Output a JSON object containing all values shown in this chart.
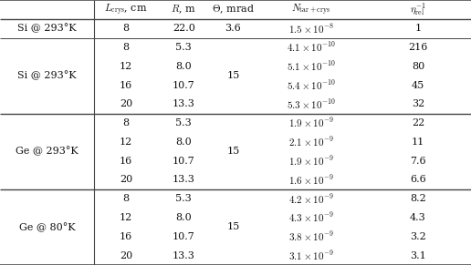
{
  "bg_color": "#ffffff",
  "text_color": "#111111",
  "line_color": "#444444",
  "font_size": 8.0,
  "col_boundaries": [
    0.0,
    0.2,
    0.335,
    0.445,
    0.545,
    0.775,
    1.0
  ],
  "total_rows": 14,
  "header": {
    "lcm": "$L_{\\mathrm{crys}}$, cm",
    "r": "$R$, m",
    "theta": "$\\Theta$, mrad",
    "n": "$N_{\\mathrm{tar+crys}}$",
    "eta": "$\\eta_{\\mathrm{rel}}^{-1}$"
  },
  "section1": {
    "label": "Si @ 293°K",
    "lcm": "8",
    "r": "22.0",
    "theta": "3.6",
    "n": "$1.5 \\times 10^{-8}$",
    "eta": "1"
  },
  "section2": {
    "label": "Si @ 293°K",
    "theta": "15",
    "rows": [
      {
        "lcm": "8",
        "r": "5.3",
        "n": "$4.1 \\times 10^{-10}$",
        "eta": "216"
      },
      {
        "lcm": "12",
        "r": "8.0",
        "n": "$5.1 \\times 10^{-10}$",
        "eta": "80"
      },
      {
        "lcm": "16",
        "r": "10.7",
        "n": "$5.4 \\times 10^{-10}$",
        "eta": "45"
      },
      {
        "lcm": "20",
        "r": "13.3",
        "n": "$5.3 \\times 10^{-10}$",
        "eta": "32"
      }
    ]
  },
  "section3": {
    "label": "Ge @ 293°K",
    "theta": "15",
    "rows": [
      {
        "lcm": "8",
        "r": "5.3",
        "n": "$1.9 \\times 10^{-9}$",
        "eta": "22"
      },
      {
        "lcm": "12",
        "r": "8.0",
        "n": "$2.1 \\times 10^{-9}$",
        "eta": "11"
      },
      {
        "lcm": "16",
        "r": "10.7",
        "n": "$1.9 \\times 10^{-9}$",
        "eta": "7.6"
      },
      {
        "lcm": "20",
        "r": "13.3",
        "n": "$1.6 \\times 10^{-9}$",
        "eta": "6.6"
      }
    ]
  },
  "section4": {
    "label": "Ge @ 80°K",
    "theta": "15",
    "rows": [
      {
        "lcm": "8",
        "r": "5.3",
        "n": "$4.2 \\times 10^{-9}$",
        "eta": "8.2"
      },
      {
        "lcm": "12",
        "r": "8.0",
        "n": "$4.3 \\times 10^{-9}$",
        "eta": "4.3"
      },
      {
        "lcm": "16",
        "r": "10.7",
        "n": "$3.8 \\times 10^{-9}$",
        "eta": "3.2"
      },
      {
        "lcm": "20",
        "r": "13.3",
        "n": "$3.1 \\times 10^{-9}$",
        "eta": "3.1"
      }
    ]
  }
}
